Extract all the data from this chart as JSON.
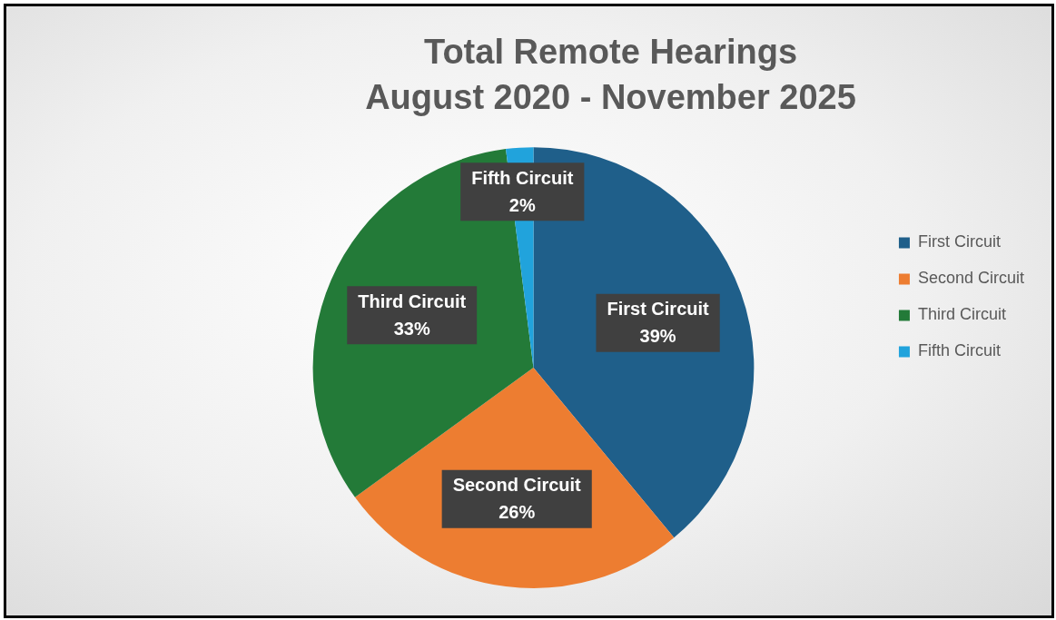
{
  "chart_data": {
    "type": "pie",
    "title": "Total Remote Hearings",
    "subtitle": "August 2020 - November 2025",
    "categories": [
      "First Circuit",
      "Second Circuit",
      "Third Circuit",
      "Fifth Circuit"
    ],
    "values": [
      39,
      26,
      33,
      2
    ],
    "colors": [
      "#1f5f8a",
      "#ed7d31",
      "#237a38",
      "#21a3dc"
    ],
    "value_labels": [
      "39%",
      "26%",
      "33%",
      "2%"
    ],
    "legend": "right"
  }
}
